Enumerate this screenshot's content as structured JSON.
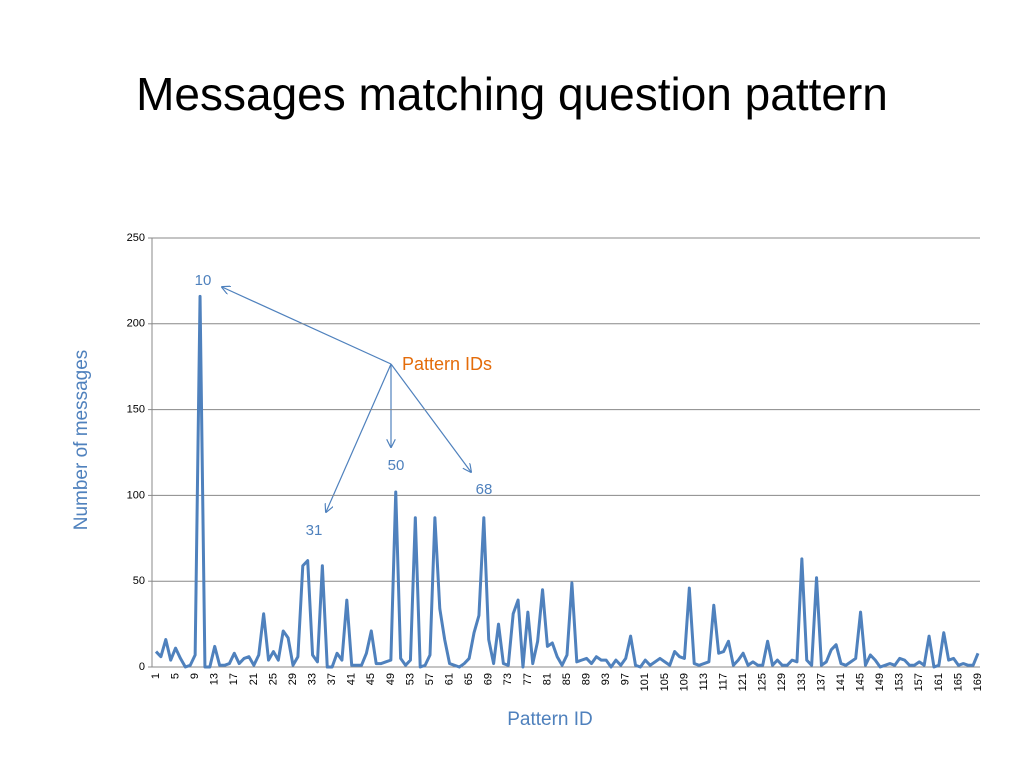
{
  "chart_data": {
    "type": "line",
    "title": "Messages matching question pattern",
    "x_label": "Pattern ID",
    "y_label": "Number of messages",
    "annotations": [
      "Pattern IDs",
      "10",
      "31",
      "50",
      "68"
    ],
    "color": "#4f81bd",
    "grid": true,
    "ylim": [
      0,
      250
    ],
    "yticks": [
      0,
      50,
      100,
      150,
      200,
      250
    ],
    "categories": [
      1,
      null,
      null,
      null,
      5,
      null,
      null,
      null,
      9,
      null,
      null,
      null,
      13,
      null,
      null,
      null,
      17,
      null,
      null,
      null,
      21,
      null,
      null,
      null,
      25,
      null,
      null,
      null,
      29,
      null,
      null,
      null,
      33,
      null,
      null,
      null,
      37,
      null,
      null,
      null,
      41,
      null,
      null,
      null,
      45,
      null,
      null,
      null,
      49,
      null,
      null,
      null,
      53,
      null,
      null,
      null,
      57,
      null,
      null,
      null,
      61,
      null,
      null,
      null,
      65,
      null,
      null,
      null,
      69,
      null,
      null,
      null,
      73,
      null,
      null,
      null,
      77,
      null,
      null,
      null,
      81,
      null,
      null,
      null,
      85,
      null,
      null,
      null,
      89,
      null,
      null,
      null,
      93,
      null,
      null,
      null,
      97,
      null,
      null,
      null,
      101,
      null,
      null,
      null,
      105,
      null,
      null,
      null,
      109,
      null,
      null,
      null,
      113,
      null,
      null,
      null,
      117,
      null,
      null,
      null,
      121,
      null,
      null,
      null,
      125,
      null,
      null,
      null,
      129,
      null,
      null,
      null,
      133,
      null,
      null,
      null,
      137,
      null,
      null,
      null,
      141,
      null,
      null,
      null,
      145,
      null,
      null,
      null,
      149,
      null,
      null,
      null,
      153,
      null,
      null,
      null,
      157,
      null,
      null,
      null,
      161,
      null,
      null,
      null,
      165,
      null,
      null,
      null,
      169
    ],
    "values": [
      9,
      6,
      16,
      4,
      11,
      5,
      0,
      1,
      7,
      216,
      0,
      0,
      12,
      1,
      1,
      2,
      8,
      2,
      5,
      6,
      1,
      7,
      31,
      4,
      9,
      4,
      21,
      17,
      1,
      6,
      59,
      62,
      7,
      3,
      59,
      0,
      0,
      8,
      4,
      39,
      1,
      1,
      1,
      8,
      21,
      2,
      2,
      3,
      4,
      102,
      5,
      1,
      4,
      87,
      0,
      1,
      7,
      87,
      34,
      16,
      2,
      1,
      0,
      2,
      5,
      20,
      30,
      87,
      16,
      2,
      25,
      2,
      1,
      31,
      39,
      0,
      32,
      2,
      15,
      45,
      12,
      14,
      6,
      1,
      7,
      49,
      3,
      4,
      5,
      2,
      6,
      4,
      4,
      0,
      4,
      1,
      5,
      18,
      1,
      0,
      4,
      1,
      3,
      5,
      3,
      1,
      9,
      6,
      5,
      46,
      2,
      1,
      2,
      3,
      36,
      8,
      9,
      15,
      1,
      4,
      8,
      1,
      3,
      1,
      1,
      15,
      1,
      4,
      1,
      1,
      4,
      3,
      63,
      4,
      1,
      52,
      1,
      3,
      10,
      13,
      2,
      1,
      3,
      5,
      32,
      1,
      7,
      4,
      0,
      1,
      2,
      1,
      5,
      4,
      1,
      1,
      3,
      1,
      18,
      0,
      1,
      20,
      4,
      5,
      1,
      2,
      1,
      1,
      8
    ]
  }
}
